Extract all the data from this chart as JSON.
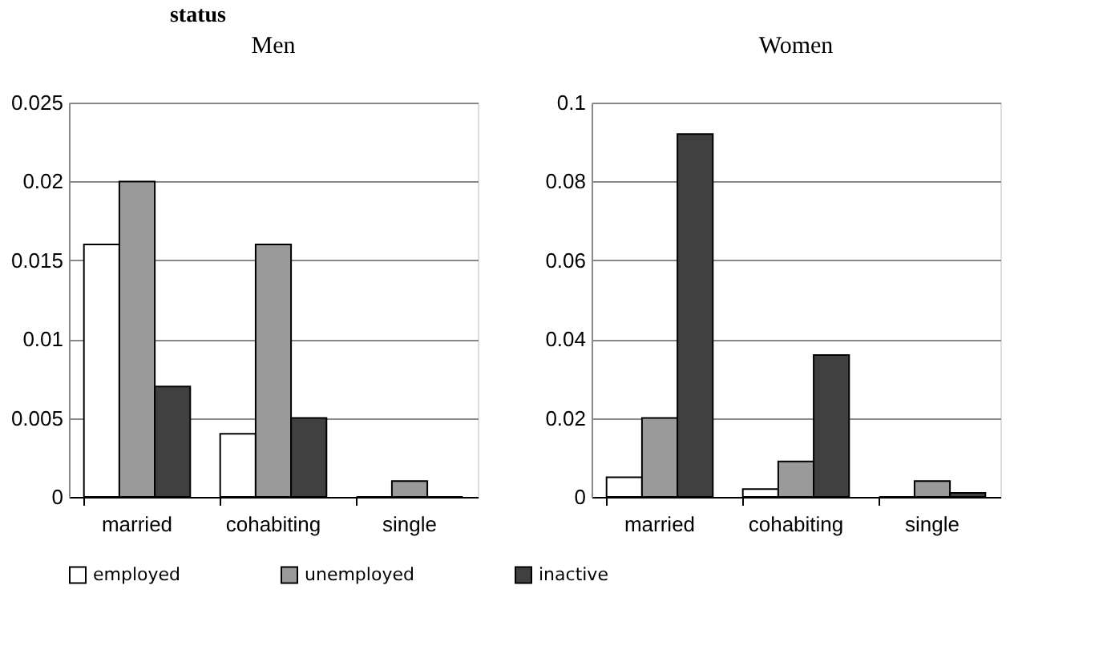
{
  "chart_data": [
    {
      "type": "bar",
      "title": "Men",
      "annotations": [
        "status"
      ],
      "categories": [
        "married",
        "cohabiting",
        "single"
      ],
      "series": [
        {
          "name": "employed",
          "color": "#ffffff",
          "values": [
            0.016,
            0.004,
            0
          ]
        },
        {
          "name": "unemployed",
          "color": "#9a9a9a",
          "values": [
            0.02,
            0.016,
            0.001
          ]
        },
        {
          "name": "inactive",
          "color": "#404040",
          "values": [
            0.007,
            0.005,
            0
          ]
        }
      ],
      "ylim": [
        0,
        0.025
      ],
      "yticks": [
        0,
        0.005,
        0.01,
        0.015,
        0.02,
        0.025
      ],
      "grid": "y",
      "legend": "bottom"
    },
    {
      "type": "bar",
      "title": "Women",
      "categories": [
        "married",
        "cohabiting",
        "single"
      ],
      "series": [
        {
          "name": "employed",
          "color": "#ffffff",
          "values": [
            0.005,
            0.002,
            0
          ]
        },
        {
          "name": "unemployed",
          "color": "#9a9a9a",
          "values": [
            0.02,
            0.009,
            0.004
          ]
        },
        {
          "name": "inactive",
          "color": "#404040",
          "values": [
            0.092,
            0.036,
            0.001
          ]
        }
      ],
      "ylim": [
        0,
        0.1
      ],
      "yticks": [
        0,
        0.02,
        0.04,
        0.06,
        0.08,
        0.1
      ],
      "grid": "y",
      "legend": "bottom"
    }
  ]
}
